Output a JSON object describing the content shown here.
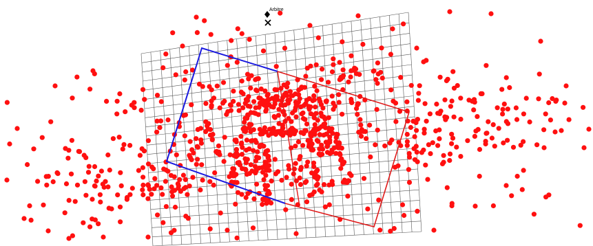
{
  "marker": {
    "label": "Arbitre",
    "top_icon": "diamond-icon",
    "bottom_icon": "cross-icon"
  },
  "colors": {
    "grid": "#555555",
    "points": "#ff1010",
    "blue_field": "#1a1adf",
    "red_field": "#e01a1a",
    "marker": "#000000"
  }
}
